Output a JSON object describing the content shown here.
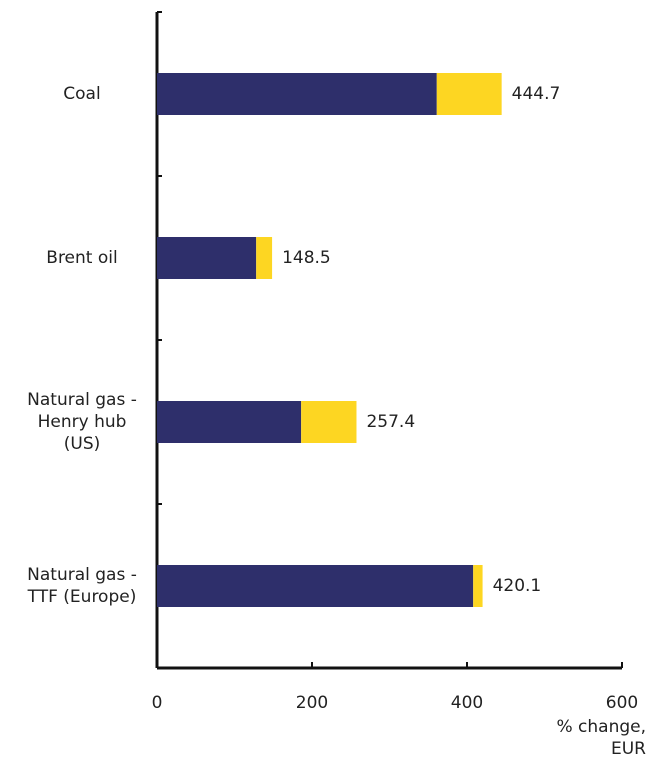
{
  "chart_data": {
    "type": "bar",
    "orientation": "horizontal",
    "stacked": true,
    "categories": [
      "Coal",
      "Brent oil",
      "Natural gas - Henry hub (US)",
      "Natural gas - TTF (Europe)"
    ],
    "series": [
      {
        "color": "#2e2f6b",
        "values": [
          361,
          128,
          186,
          408
        ]
      },
      {
        "color": "#fdd622",
        "values": [
          83.7,
          20.5,
          71.4,
          12.1
        ]
      }
    ],
    "totals": [
      444.7,
      148.5,
      257.4,
      420.1
    ],
    "xlim": [
      0,
      600
    ],
    "xticks": [
      0,
      200,
      400,
      600
    ],
    "x_label": "% change, EUR"
  }
}
